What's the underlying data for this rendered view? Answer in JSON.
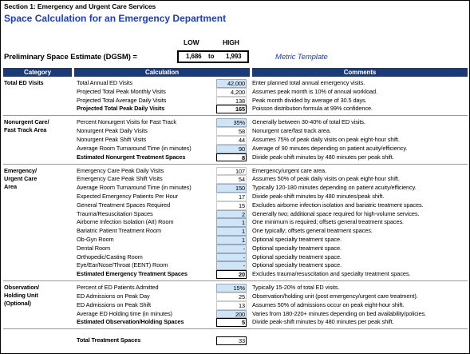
{
  "header": {
    "section": "Section 1:  Emergency and Urgent Care Services",
    "title": "Space Calculation for an Emergency Department"
  },
  "estimate": {
    "label": "Preliminary Space Estimate (DGSM) =",
    "low_label": "LOW",
    "high_label": "HIGH",
    "low": "1,686",
    "to": "to",
    "high": "1,993",
    "template": "Metric Template"
  },
  "table": {
    "columns": [
      "Category",
      "Calculation",
      "Comments"
    ],
    "groups": [
      {
        "category": [
          "Total ED Visits"
        ],
        "rows": [
          {
            "label": "Total Annual ED Visits",
            "value": "42,000",
            "comment": "Enter planned total annual emergency visits.",
            "input": true,
            "bold": false
          },
          {
            "label": "Projected Total Peak Monthly Visits",
            "value": "4,200",
            "comment": "Assumes peak month is 10% of annual workload.",
            "input": false,
            "bold": false
          },
          {
            "label": "Projected Total Average Daily Visits",
            "value": "138",
            "comment": "Peak month divided by average of 30.5 days.",
            "input": false,
            "bold": false
          },
          {
            "label": "Projected Total Peak Daily Visits",
            "value": "165",
            "comment": "Poisson distribution formula at 99% confidence.",
            "input": false,
            "bold": true
          }
        ]
      },
      {
        "category": [
          "Nonurgent Care/",
          "Fast Track Area"
        ],
        "rows": [
          {
            "label": "Percent Nonurgent Visits for Fast Track",
            "value": "35%",
            "comment": "Generally between 30-40% of total ED visits.",
            "input": true,
            "bold": false
          },
          {
            "label": "Nonurgent Peak Daily Visits",
            "value": "58",
            "comment": "Nonurgent care/fast track area.",
            "input": false,
            "bold": false
          },
          {
            "label": "Nonurgent Peak Shift Visits",
            "value": "44",
            "comment": "Assumes 75% of peak daily visits on peak eight-hour shift.",
            "input": false,
            "bold": false
          },
          {
            "label": "Average Room Turnaround Time (in minutes)",
            "value": "90",
            "comment": "Average of 90 minutes depending on patient acuity/efficiency.",
            "input": true,
            "bold": false
          },
          {
            "label": "Estimated Nonurgent Treatment Spaces",
            "value": "8",
            "comment": "Divide peak-shift minutes by 480 minutes per peak shift.",
            "input": false,
            "bold": true
          }
        ]
      },
      {
        "category": [
          "Emergency/",
          "Urgent Care",
          "Area"
        ],
        "rows": [
          {
            "label": "Emergency Care Peak Daily Visits",
            "value": "107",
            "comment": "Emergency/urgent care area.",
            "input": false,
            "bold": false
          },
          {
            "label": "Emergency Care Peak Shift Visits",
            "value": "54",
            "comment": "Assumes 50% of peak daily visits on peak eight-hour shift.",
            "input": false,
            "bold": false
          },
          {
            "label": "Average Room Turnaround Time (in minutes)",
            "value": "150",
            "comment": "Typically 120-180 minutes depending on patient acuity/efficiency.",
            "input": true,
            "bold": false
          },
          {
            "label": "Expected Emergency Patients Per Hour",
            "value": "17",
            "comment": "Divide peak-shift minutes by 480 minutes/peak shift.",
            "input": false,
            "bold": false
          },
          {
            "label": "General Treatment Spaces Required",
            "value": "15",
            "comment": "Excludes airborne infection isolation and bariatric treatment spaces.",
            "input": false,
            "bold": false
          },
          {
            "label": "Trauma/Resuscitation Spaces",
            "value": "2",
            "comment": "Generally two; additional space required for high-volume services.",
            "input": true,
            "bold": false
          },
          {
            "label": "Airborne Infection Isolation (AII) Room",
            "value": "1",
            "comment": "One minimum is required; offsets general treatment spaces.",
            "input": true,
            "bold": false
          },
          {
            "label": "Bariatric Patient Treatment Room",
            "value": "1",
            "comment": "One typically; offsets general treatment spaces.",
            "input": true,
            "bold": false
          },
          {
            "label": "Ob-Gyn Room",
            "value": "1",
            "comment": "Optional specialty treatment space.",
            "input": true,
            "bold": false
          },
          {
            "label": "Dental Room",
            "value": "-",
            "comment": "Optional specialty treatment space.",
            "input": true,
            "bold": false
          },
          {
            "label": "Orthopedic/Casting Room",
            "value": "-",
            "comment": "Optional specialty treatment space.",
            "input": true,
            "bold": false
          },
          {
            "label": "Eye/Ear/Nose/Throat (EENT) Room",
            "value": "-",
            "comment": "Optional specialty treatment space.",
            "input": true,
            "bold": false
          },
          {
            "label": "Estimated Emergency Treatment Spaces",
            "value": "20",
            "comment": "Excludes trauma/resuscitation and specialty treatment spaces.",
            "input": false,
            "bold": true
          }
        ]
      },
      {
        "category": [
          "Observation/",
          "Holding Unit",
          "(Optional)"
        ],
        "rows": [
          {
            "label": "Percent of ED Patients Admitted",
            "value": "15%",
            "comment": "Typically 15-20% of total ED visits.",
            "input": true,
            "bold": false
          },
          {
            "label": "ED Admissions on Peak Day",
            "value": "25",
            "comment": "Observation/holding unit (post emergency/urgent care treatment).",
            "input": false,
            "bold": false
          },
          {
            "label": "ED Admissions on Peak Shift",
            "value": "13",
            "comment": "Assumes 50% of admissions occur on peak eight-hour shift.",
            "input": false,
            "bold": false
          },
          {
            "label": "Average ED Holding time (in minutes)",
            "value": "200",
            "comment": "Varies from 180-220+ minutes depending on bed availability/policies.",
            "input": true,
            "bold": false
          },
          {
            "label": "Estimated Observation/Holding Spaces",
            "value": "5",
            "comment": "Divide peak-shift minutes by 480 minutes per peak shift.",
            "input": false,
            "bold": true
          }
        ]
      }
    ]
  },
  "total": {
    "label": "Total Treatment Spaces",
    "value": "33"
  }
}
